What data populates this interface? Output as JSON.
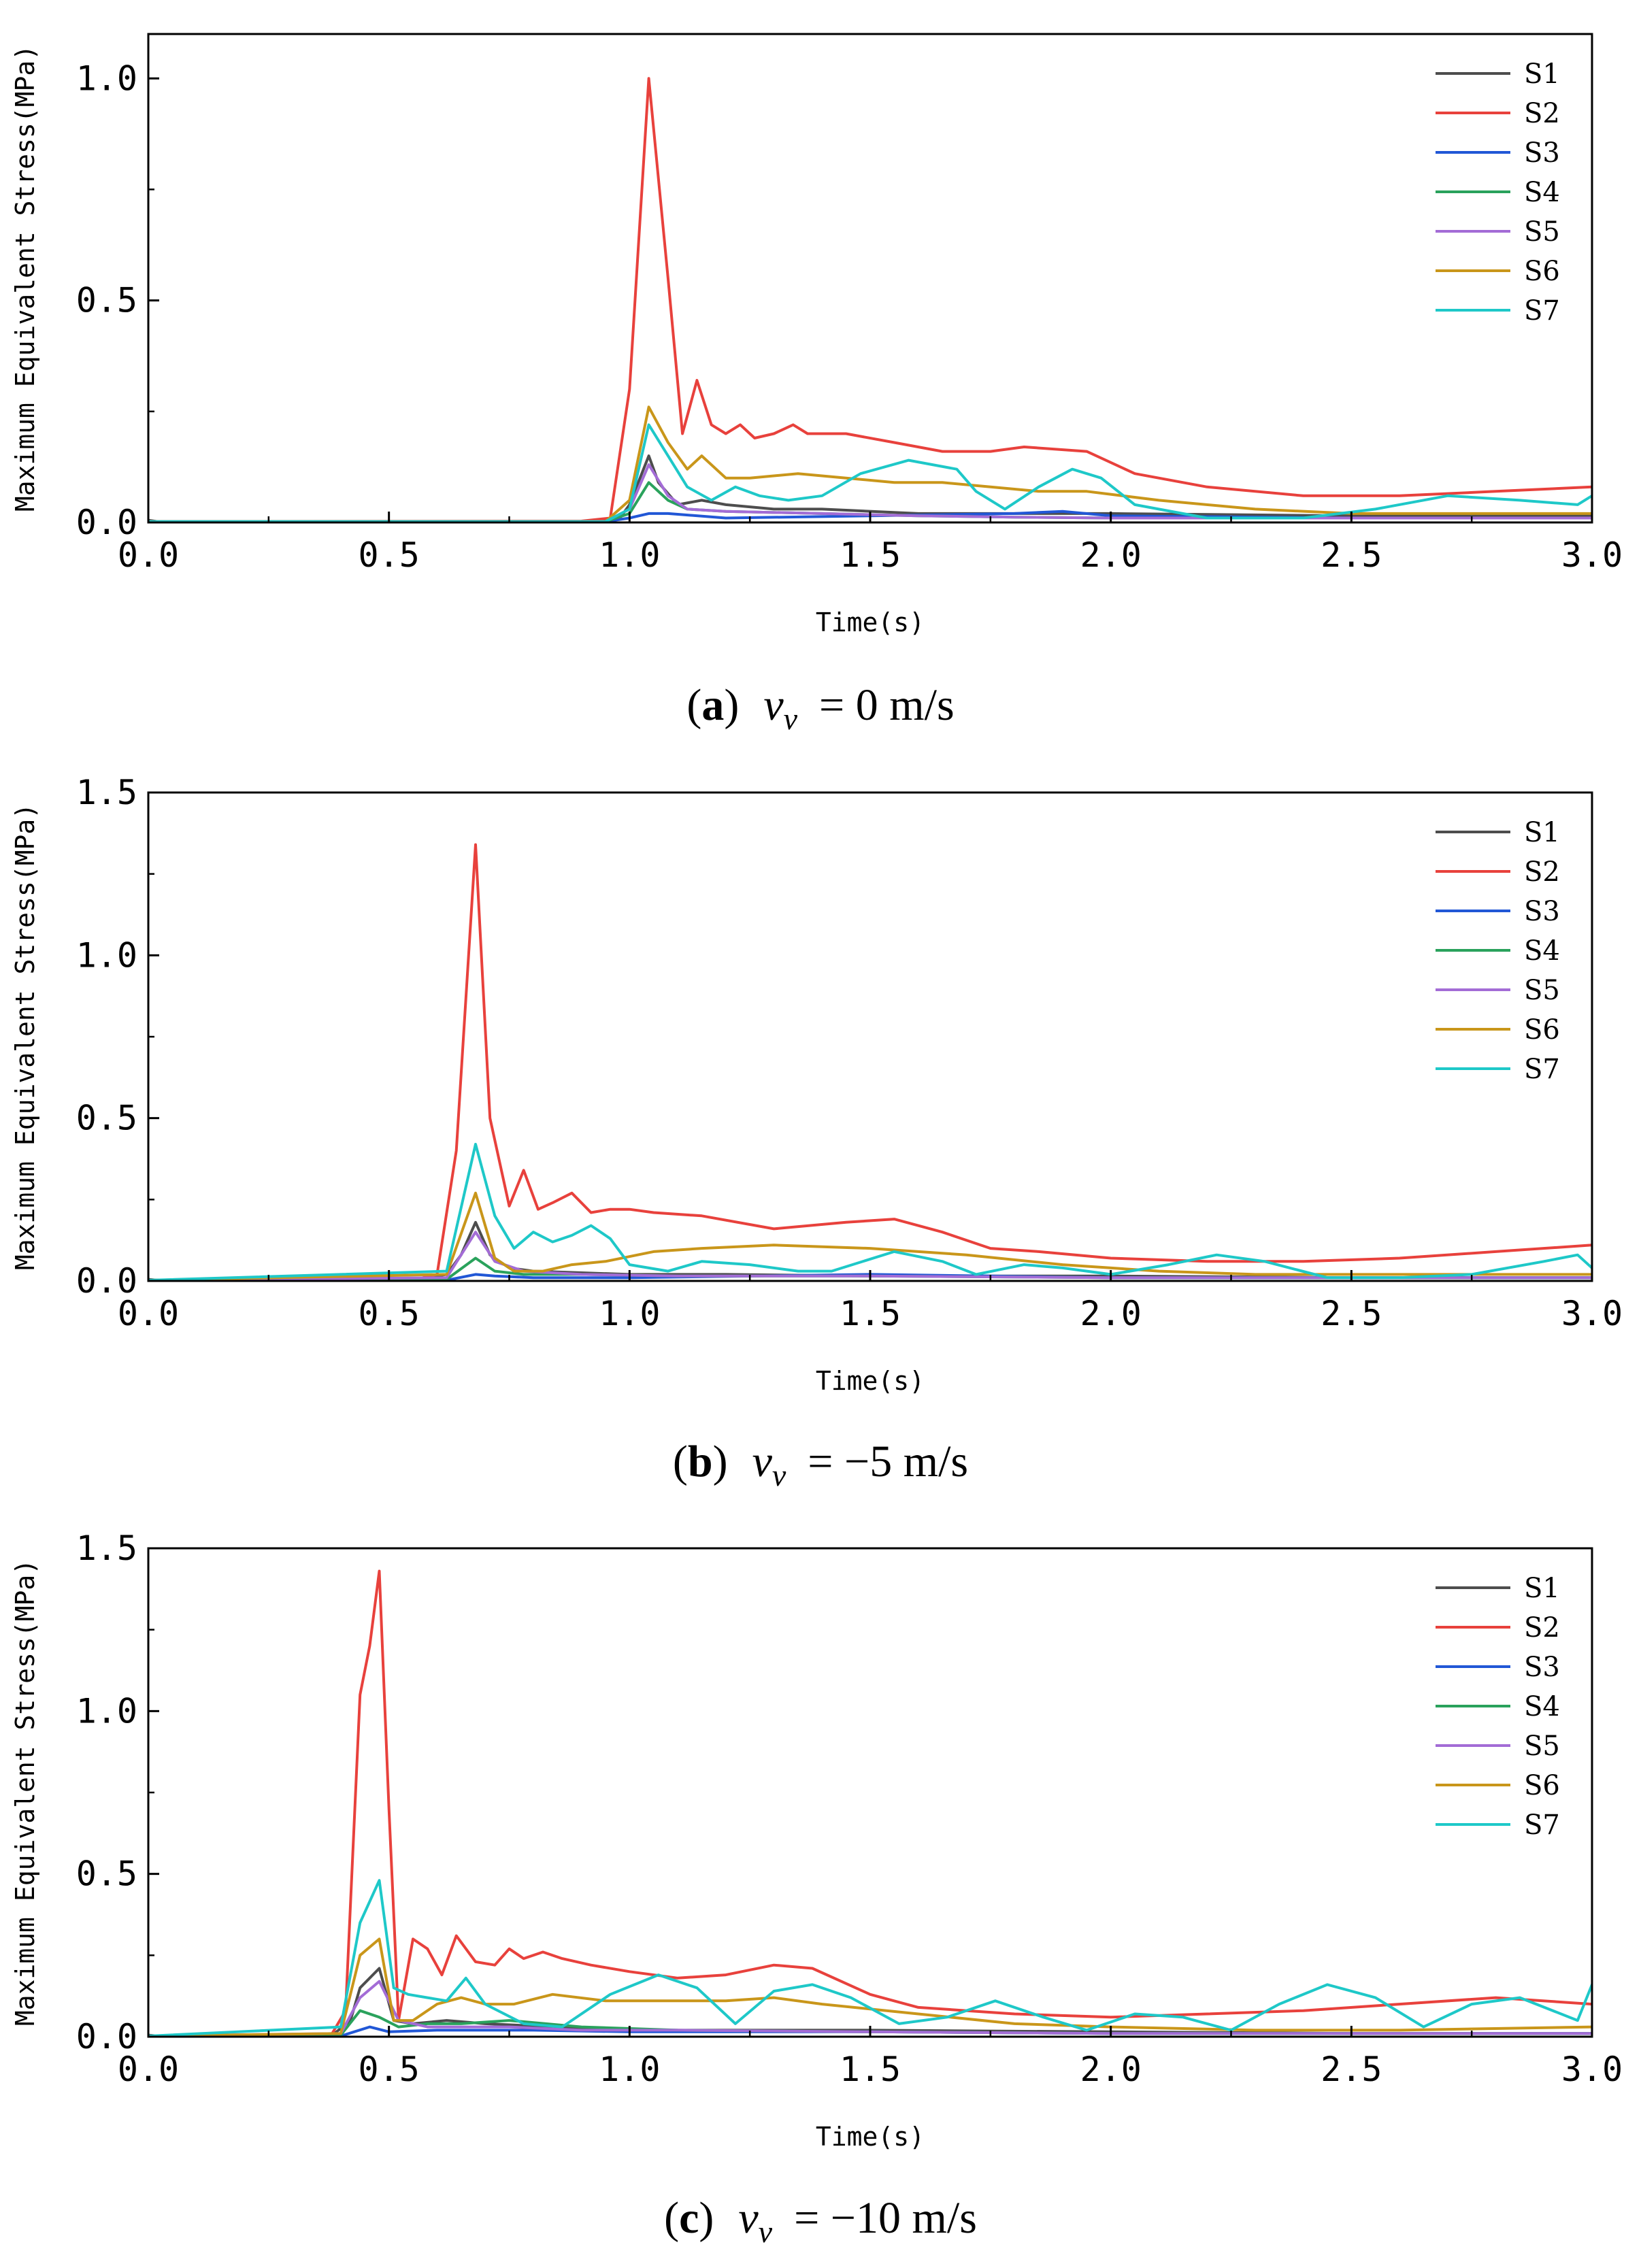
{
  "chart_data": [
    {
      "type": "line",
      "caption": {
        "letter": "a",
        "variable": "v",
        "subscript": "v",
        "value_text": "= 0 m/s"
      },
      "xlabel": "Time(s)",
      "ylabel": "Maximum Equivalent Stress(MPa)",
      "xlim": [
        0,
        3
      ],
      "ylim": [
        0,
        1.1
      ],
      "xticks": [
        0.0,
        0.5,
        1.0,
        1.5,
        2.0,
        2.5,
        3.0
      ],
      "xtick_labels": [
        "0.0",
        "0.5",
        "1.0",
        "1.5",
        "2.0",
        "2.5",
        "3.0"
      ],
      "yticks": [
        0.0,
        0.5,
        1.0
      ],
      "ytick_labels": [
        "0.0",
        "0.5",
        "1.0"
      ],
      "grid": false,
      "legend_position": "top-right",
      "series": [
        {
          "name": "S1",
          "color": "#4d4d4d",
          "x": [
            0,
            0.02,
            0.9,
            0.98,
            1.0,
            1.04,
            1.06,
            1.1,
            1.15,
            1.2,
            1.3,
            1.4,
            1.6,
            1.8,
            2.0,
            2.5,
            3.0
          ],
          "y": [
            0.005,
            0.002,
            0.002,
            0.01,
            0.04,
            0.15,
            0.09,
            0.04,
            0.05,
            0.04,
            0.03,
            0.03,
            0.02,
            0.02,
            0.02,
            0.015,
            0.015
          ]
        },
        {
          "name": "S2",
          "color": "#e8413c",
          "x": [
            0,
            0.9,
            0.96,
            1.0,
            1.04,
            1.08,
            1.11,
            1.14,
            1.17,
            1.2,
            1.23,
            1.26,
            1.3,
            1.34,
            1.37,
            1.45,
            1.55,
            1.65,
            1.75,
            1.82,
            1.95,
            2.05,
            2.2,
            2.4,
            2.6,
            2.8,
            3.0
          ],
          "y": [
            0.002,
            0.003,
            0.01,
            0.3,
            1.0,
            0.55,
            0.2,
            0.32,
            0.22,
            0.2,
            0.22,
            0.19,
            0.2,
            0.22,
            0.2,
            0.2,
            0.18,
            0.16,
            0.16,
            0.17,
            0.16,
            0.11,
            0.08,
            0.06,
            0.06,
            0.07,
            0.08
          ]
        },
        {
          "name": "S3",
          "color": "#2157d6",
          "x": [
            0,
            0.95,
            1.0,
            1.04,
            1.08,
            1.2,
            1.5,
            1.8,
            1.9,
            2.0,
            2.5,
            3.0
          ],
          "y": [
            0.002,
            0.002,
            0.01,
            0.02,
            0.02,
            0.01,
            0.015,
            0.02,
            0.025,
            0.015,
            0.01,
            0.01
          ]
        },
        {
          "name": "S4",
          "color": "#2aa25c",
          "x": [
            0,
            0.95,
            1.0,
            1.04,
            1.08,
            1.12,
            1.2,
            1.4,
            1.6,
            1.8,
            2.0,
            2.5,
            3.0
          ],
          "y": [
            0.002,
            0.002,
            0.02,
            0.09,
            0.05,
            0.03,
            0.025,
            0.02,
            0.015,
            0.012,
            0.01,
            0.01,
            0.01
          ]
        },
        {
          "name": "S5",
          "color": "#a36cd6",
          "x": [
            0,
            0.95,
            1.0,
            1.04,
            1.08,
            1.12,
            1.2,
            1.4,
            1.6,
            1.8,
            2.0,
            2.5,
            3.0
          ],
          "y": [
            0.002,
            0.002,
            0.03,
            0.13,
            0.06,
            0.03,
            0.025,
            0.02,
            0.015,
            0.012,
            0.01,
            0.01,
            0.01
          ]
        },
        {
          "name": "S6",
          "color": "#c9961a",
          "x": [
            0,
            0.95,
            1.0,
            1.04,
            1.08,
            1.12,
            1.15,
            1.2,
            1.25,
            1.35,
            1.45,
            1.55,
            1.65,
            1.75,
            1.85,
            1.95,
            2.1,
            2.3,
            2.5,
            2.7,
            3.0
          ],
          "y": [
            0.002,
            0.002,
            0.05,
            0.26,
            0.18,
            0.12,
            0.15,
            0.1,
            0.1,
            0.11,
            0.1,
            0.09,
            0.09,
            0.08,
            0.07,
            0.07,
            0.05,
            0.03,
            0.02,
            0.02,
            0.02
          ]
        },
        {
          "name": "S7",
          "color": "#1ec8c8",
          "x": [
            0,
            0.95,
            1.0,
            1.04,
            1.08,
            1.12,
            1.17,
            1.22,
            1.27,
            1.33,
            1.4,
            1.48,
            1.58,
            1.68,
            1.72,
            1.78,
            1.85,
            1.92,
            1.98,
            2.05,
            2.2,
            2.4,
            2.55,
            2.7,
            2.85,
            2.97,
            3.0
          ],
          "y": [
            0.002,
            0.002,
            0.03,
            0.22,
            0.15,
            0.08,
            0.05,
            0.08,
            0.06,
            0.05,
            0.06,
            0.11,
            0.14,
            0.12,
            0.07,
            0.03,
            0.08,
            0.12,
            0.1,
            0.04,
            0.01,
            0.01,
            0.03,
            0.06,
            0.05,
            0.04,
            0.06
          ]
        }
      ]
    },
    {
      "type": "line",
      "caption": {
        "letter": "b",
        "variable": "v",
        "subscript": "v",
        "value_text": "= −5 m/s"
      },
      "xlabel": "Time(s)",
      "ylabel": "Maximum Equivalent Stress(MPa)",
      "xlim": [
        0,
        3
      ],
      "ylim": [
        0,
        1.5
      ],
      "xticks": [
        0.0,
        0.5,
        1.0,
        1.5,
        2.0,
        2.5,
        3.0
      ],
      "xtick_labels": [
        "0.0",
        "0.5",
        "1.0",
        "1.5",
        "2.0",
        "2.5",
        "3.0"
      ],
      "yticks": [
        0.0,
        0.5,
        1.0,
        1.5
      ],
      "ytick_labels": [
        "0.0",
        "0.5",
        "1.0",
        "1.5"
      ],
      "grid": false,
      "legend_position": "top-right",
      "series": [
        {
          "name": "S1",
          "color": "#4d4d4d",
          "x": [
            0,
            0.02,
            0.55,
            0.62,
            0.65,
            0.68,
            0.71,
            0.75,
            0.8,
            0.9,
            1.0,
            1.2,
            1.5,
            2.0,
            2.5,
            3.0
          ],
          "y": [
            0.005,
            0.002,
            0.002,
            0.02,
            0.08,
            0.18,
            0.08,
            0.04,
            0.03,
            0.025,
            0.02,
            0.02,
            0.015,
            0.015,
            0.01,
            0.01
          ]
        },
        {
          "name": "S2",
          "color": "#e8413c",
          "x": [
            0,
            0.55,
            0.6,
            0.64,
            0.68,
            0.71,
            0.75,
            0.78,
            0.81,
            0.84,
            0.88,
            0.92,
            0.96,
            1.0,
            1.05,
            1.15,
            1.3,
            1.45,
            1.55,
            1.65,
            1.75,
            1.85,
            2.0,
            2.2,
            2.4,
            2.6,
            2.8,
            3.0
          ],
          "y": [
            0.002,
            0.003,
            0.02,
            0.4,
            1.34,
            0.5,
            0.23,
            0.34,
            0.22,
            0.24,
            0.27,
            0.21,
            0.22,
            0.22,
            0.21,
            0.2,
            0.16,
            0.18,
            0.19,
            0.15,
            0.1,
            0.09,
            0.07,
            0.06,
            0.06,
            0.07,
            0.09,
            0.11
          ]
        },
        {
          "name": "S3",
          "color": "#2157d6",
          "x": [
            0,
            0.62,
            0.68,
            0.72,
            0.8,
            1.0,
            1.5,
            2.0,
            2.5,
            3.0
          ],
          "y": [
            0.002,
            0.002,
            0.02,
            0.015,
            0.01,
            0.01,
            0.02,
            0.01,
            0.01,
            0.01
          ]
        },
        {
          "name": "S4",
          "color": "#2aa25c",
          "x": [
            0,
            0.62,
            0.68,
            0.72,
            0.78,
            0.9,
            1.1,
            1.5,
            2.0,
            2.5,
            3.0
          ],
          "y": [
            0.002,
            0.005,
            0.07,
            0.03,
            0.02,
            0.02,
            0.015,
            0.015,
            0.01,
            0.01,
            0.01
          ]
        },
        {
          "name": "S5",
          "color": "#a36cd6",
          "x": [
            0,
            0.62,
            0.68,
            0.72,
            0.78,
            0.9,
            1.1,
            1.5,
            2.0,
            2.5,
            3.0
          ],
          "y": [
            0.002,
            0.01,
            0.15,
            0.06,
            0.03,
            0.02,
            0.015,
            0.015,
            0.01,
            0.01,
            0.01
          ]
        },
        {
          "name": "S6",
          "color": "#c9961a",
          "x": [
            0,
            0.62,
            0.68,
            0.72,
            0.76,
            0.82,
            0.88,
            0.95,
            1.05,
            1.15,
            1.3,
            1.5,
            1.7,
            1.9,
            2.1,
            2.3,
            2.6,
            3.0
          ],
          "y": [
            0.002,
            0.02,
            0.27,
            0.07,
            0.03,
            0.03,
            0.05,
            0.06,
            0.09,
            0.1,
            0.11,
            0.1,
            0.08,
            0.05,
            0.03,
            0.02,
            0.02,
            0.02
          ]
        },
        {
          "name": "S7",
          "color": "#1ec8c8",
          "x": [
            0,
            0.62,
            0.68,
            0.72,
            0.76,
            0.8,
            0.84,
            0.88,
            0.92,
            0.96,
            1.0,
            1.08,
            1.15,
            1.25,
            1.35,
            1.42,
            1.55,
            1.65,
            1.72,
            1.82,
            1.9,
            2.0,
            2.12,
            2.22,
            2.32,
            2.45,
            2.6,
            2.75,
            2.9,
            2.97,
            3.0
          ],
          "y": [
            0.002,
            0.03,
            0.42,
            0.2,
            0.1,
            0.15,
            0.12,
            0.14,
            0.17,
            0.13,
            0.05,
            0.03,
            0.06,
            0.05,
            0.03,
            0.03,
            0.09,
            0.06,
            0.02,
            0.05,
            0.04,
            0.02,
            0.05,
            0.08,
            0.06,
            0.01,
            0.01,
            0.02,
            0.06,
            0.08,
            0.04
          ]
        }
      ]
    },
    {
      "type": "line",
      "caption": {
        "letter": "c",
        "variable": "v",
        "subscript": "v",
        "value_text": "= −10 m/s"
      },
      "xlabel": "Time(s)",
      "ylabel": "Maximum Equivalent Stress(MPa)",
      "xlim": [
        0,
        3
      ],
      "ylim": [
        0,
        1.5
      ],
      "xticks": [
        0.0,
        0.5,
        1.0,
        1.5,
        2.0,
        2.5,
        3.0
      ],
      "xtick_labels": [
        "0.0",
        "0.5",
        "1.0",
        "1.5",
        "2.0",
        "2.5",
        "3.0"
      ],
      "yticks": [
        0.0,
        0.5,
        1.0,
        1.5
      ],
      "ytick_labels": [
        "0.0",
        "0.5",
        "1.0",
        "1.5"
      ],
      "grid": false,
      "legend_position": "top-right",
      "series": [
        {
          "name": "S1",
          "color": "#4d4d4d",
          "x": [
            0,
            0.02,
            0.38,
            0.42,
            0.44,
            0.48,
            0.51,
            0.55,
            0.62,
            0.7,
            0.85,
            1.0,
            1.5,
            2.0,
            2.5,
            3.0
          ],
          "y": [
            0.005,
            0.002,
            0.002,
            0.05,
            0.15,
            0.21,
            0.05,
            0.04,
            0.05,
            0.04,
            0.03,
            0.02,
            0.02,
            0.015,
            0.01,
            0.01
          ]
        },
        {
          "name": "S2",
          "color": "#e8413c",
          "x": [
            0,
            0.38,
            0.41,
            0.44,
            0.46,
            0.48,
            0.5,
            0.52,
            0.55,
            0.58,
            0.61,
            0.64,
            0.68,
            0.72,
            0.75,
            0.78,
            0.82,
            0.86,
            0.92,
            1.0,
            1.1,
            1.2,
            1.3,
            1.38,
            1.5,
            1.6,
            1.7,
            1.8,
            2.0,
            2.2,
            2.4,
            2.6,
            2.8,
            3.0
          ],
          "y": [
            0.002,
            0.005,
            0.08,
            1.05,
            1.2,
            1.43,
            0.7,
            0.05,
            0.3,
            0.27,
            0.19,
            0.31,
            0.23,
            0.22,
            0.27,
            0.24,
            0.26,
            0.24,
            0.22,
            0.2,
            0.18,
            0.19,
            0.22,
            0.21,
            0.13,
            0.09,
            0.08,
            0.07,
            0.06,
            0.07,
            0.08,
            0.1,
            0.12,
            0.1
          ]
        },
        {
          "name": "S3",
          "color": "#2157d6",
          "x": [
            0,
            0.4,
            0.46,
            0.5,
            0.6,
            0.8,
            1.0,
            1.5,
            2.0,
            2.5,
            3.0
          ],
          "y": [
            0.002,
            0.002,
            0.03,
            0.015,
            0.02,
            0.02,
            0.015,
            0.015,
            0.01,
            0.01,
            0.01
          ]
        },
        {
          "name": "S4",
          "color": "#2aa25c",
          "x": [
            0,
            0.4,
            0.44,
            0.48,
            0.52,
            0.58,
            0.65,
            0.75,
            0.9,
            1.1,
            1.5,
            2.0,
            2.5,
            3.0
          ],
          "y": [
            0.002,
            0.005,
            0.08,
            0.06,
            0.03,
            0.04,
            0.04,
            0.05,
            0.03,
            0.02,
            0.015,
            0.01,
            0.01,
            0.01
          ]
        },
        {
          "name": "S5",
          "color": "#a36cd6",
          "x": [
            0,
            0.4,
            0.44,
            0.48,
            0.52,
            0.58,
            0.65,
            0.75,
            0.9,
            1.1,
            1.5,
            2.0,
            2.5,
            3.0
          ],
          "y": [
            0.002,
            0.01,
            0.12,
            0.17,
            0.05,
            0.03,
            0.03,
            0.03,
            0.02,
            0.02,
            0.015,
            0.01,
            0.01,
            0.01
          ]
        },
        {
          "name": "S6",
          "color": "#c9961a",
          "x": [
            0,
            0.4,
            0.44,
            0.48,
            0.51,
            0.55,
            0.6,
            0.65,
            0.7,
            0.76,
            0.84,
            0.95,
            1.1,
            1.2,
            1.3,
            1.4,
            1.6,
            1.8,
            2.0,
            2.3,
            2.6,
            3.0
          ],
          "y": [
            0.002,
            0.01,
            0.25,
            0.3,
            0.05,
            0.05,
            0.1,
            0.12,
            0.1,
            0.1,
            0.13,
            0.11,
            0.11,
            0.11,
            0.12,
            0.1,
            0.07,
            0.04,
            0.03,
            0.02,
            0.02,
            0.03
          ]
        },
        {
          "name": "S7",
          "color": "#1ec8c8",
          "x": [
            0,
            0.4,
            0.44,
            0.48,
            0.51,
            0.54,
            0.58,
            0.62,
            0.66,
            0.7,
            0.78,
            0.86,
            0.96,
            1.06,
            1.14,
            1.22,
            1.3,
            1.38,
            1.46,
            1.56,
            1.66,
            1.76,
            1.86,
            1.95,
            2.05,
            2.15,
            2.25,
            2.35,
            2.45,
            2.55,
            2.65,
            2.75,
            2.85,
            2.97,
            3.0
          ],
          "y": [
            0.002,
            0.03,
            0.35,
            0.48,
            0.15,
            0.13,
            0.12,
            0.11,
            0.18,
            0.1,
            0.04,
            0.03,
            0.13,
            0.19,
            0.15,
            0.04,
            0.14,
            0.16,
            0.12,
            0.04,
            0.06,
            0.11,
            0.06,
            0.02,
            0.07,
            0.06,
            0.02,
            0.1,
            0.16,
            0.12,
            0.03,
            0.1,
            0.12,
            0.05,
            0.16
          ]
        }
      ]
    }
  ]
}
